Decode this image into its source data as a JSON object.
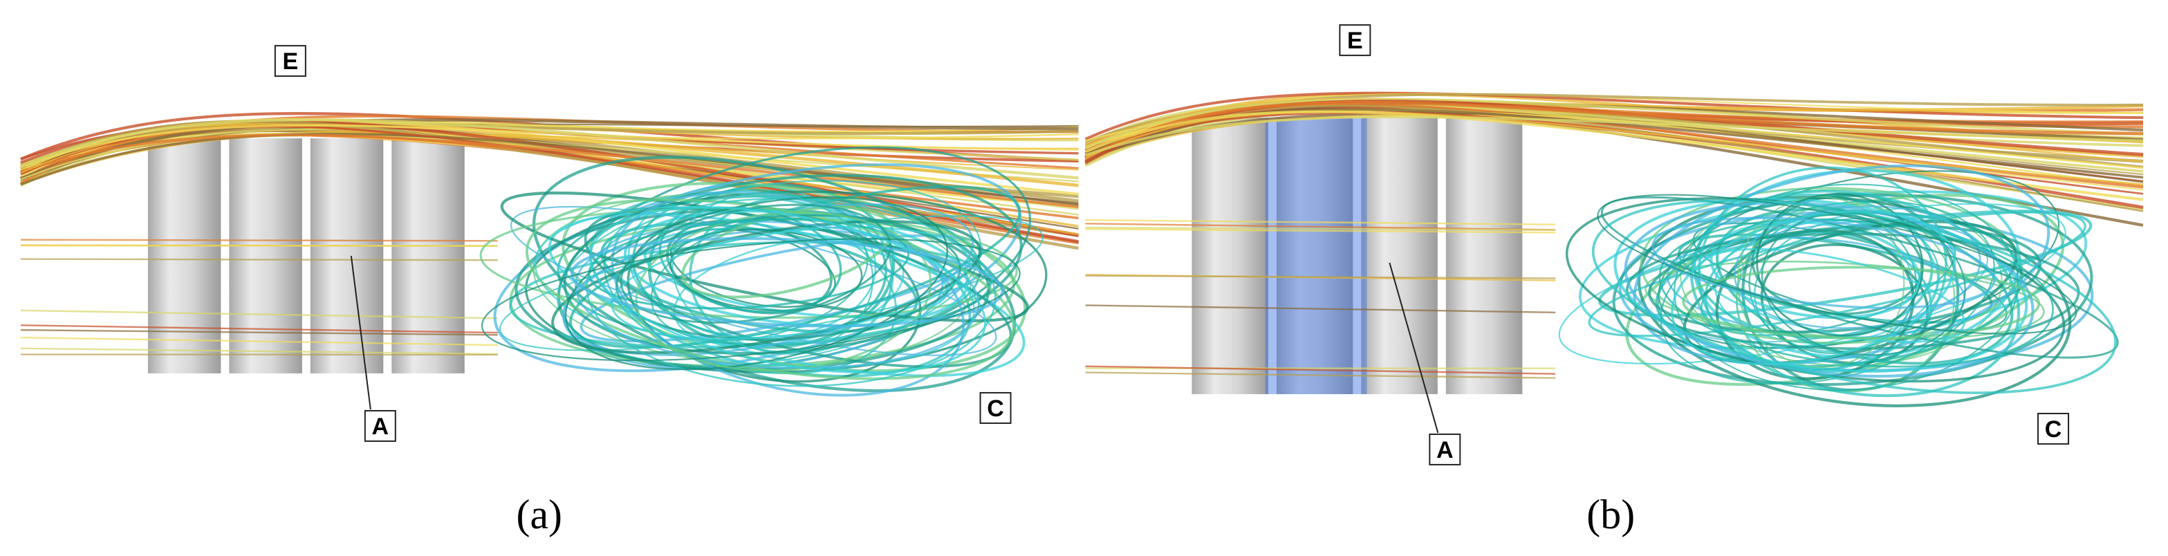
{
  "panels": [
    {
      "caption": "(a)",
      "labels": [
        "E",
        "A",
        "C"
      ]
    },
    {
      "caption": "(b)",
      "labels": [
        "E",
        "A",
        "C"
      ]
    }
  ]
}
